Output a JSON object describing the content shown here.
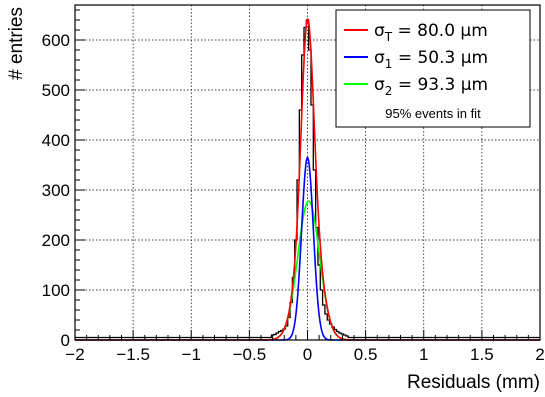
{
  "chart_data": {
    "type": "line",
    "xlabel": "Residuals (mm)",
    "ylabel": "# entries",
    "xlim": [
      -2,
      2
    ],
    "ylim": [
      0,
      670
    ],
    "xticks": [
      -2,
      -1.5,
      -1,
      -0.5,
      0,
      0.5,
      1,
      1.5,
      2
    ],
    "xtick_labels": [
      "−2",
      "−1.5",
      "−1",
      "−0.5",
      "0",
      "0.5",
      "1",
      "1.5",
      "2"
    ],
    "yticks": [
      0,
      100,
      200,
      300,
      400,
      500,
      600
    ],
    "ytick_labels": [
      "0",
      "100",
      "200",
      "300",
      "400",
      "500",
      "600"
    ],
    "grid": true,
    "legend_position": "top-right",
    "histogram": {
      "name": "data",
      "color": "#000000",
      "bin_width": 0.02,
      "x": [
        -0.3,
        -0.28,
        -0.26,
        -0.24,
        -0.22,
        -0.2,
        -0.18,
        -0.16,
        -0.14,
        -0.12,
        -0.1,
        -0.08,
        -0.06,
        -0.04,
        -0.02,
        0.0,
        0.02,
        0.04,
        0.06,
        0.08,
        0.1,
        0.12,
        0.14,
        0.16,
        0.18,
        0.2,
        0.22,
        0.24,
        0.26,
        0.28,
        0.3,
        0.32,
        0.34
      ],
      "values": [
        10,
        11,
        14,
        17,
        19,
        22,
        28,
        45,
        75,
        125,
        200,
        320,
        460,
        570,
        625,
        640,
        580,
        470,
        340,
        225,
        150,
        100,
        70,
        52,
        40,
        32,
        26,
        21,
        17,
        14,
        12,
        10,
        8
      ],
      "background_level": 5
    },
    "series": [
      {
        "name": "σ_T = 80.0 μm",
        "color": "#ff0000",
        "kind": "sum"
      },
      {
        "name": "σ_1 = 50.3 μm",
        "color": "#0000ff",
        "amplitude": 365,
        "mean": 0.0,
        "sigma": 0.0503
      },
      {
        "name": "σ_2 = 93.3 μm",
        "color": "#00ff00",
        "amplitude": 278,
        "mean": 0.01,
        "sigma": 0.0933
      }
    ],
    "legend": {
      "entries": [
        {
          "symbol": "σ",
          "sub": "T",
          "rest": " = 80.0 μm",
          "color": "#ff0000"
        },
        {
          "symbol": "σ",
          "sub": "1",
          "rest": " = 50.3 μm",
          "color": "#0000ff"
        },
        {
          "symbol": "σ",
          "sub": "2",
          "rest": " = 93.3 μm",
          "color": "#00ff00"
        }
      ],
      "note": "95% events in fit"
    }
  }
}
